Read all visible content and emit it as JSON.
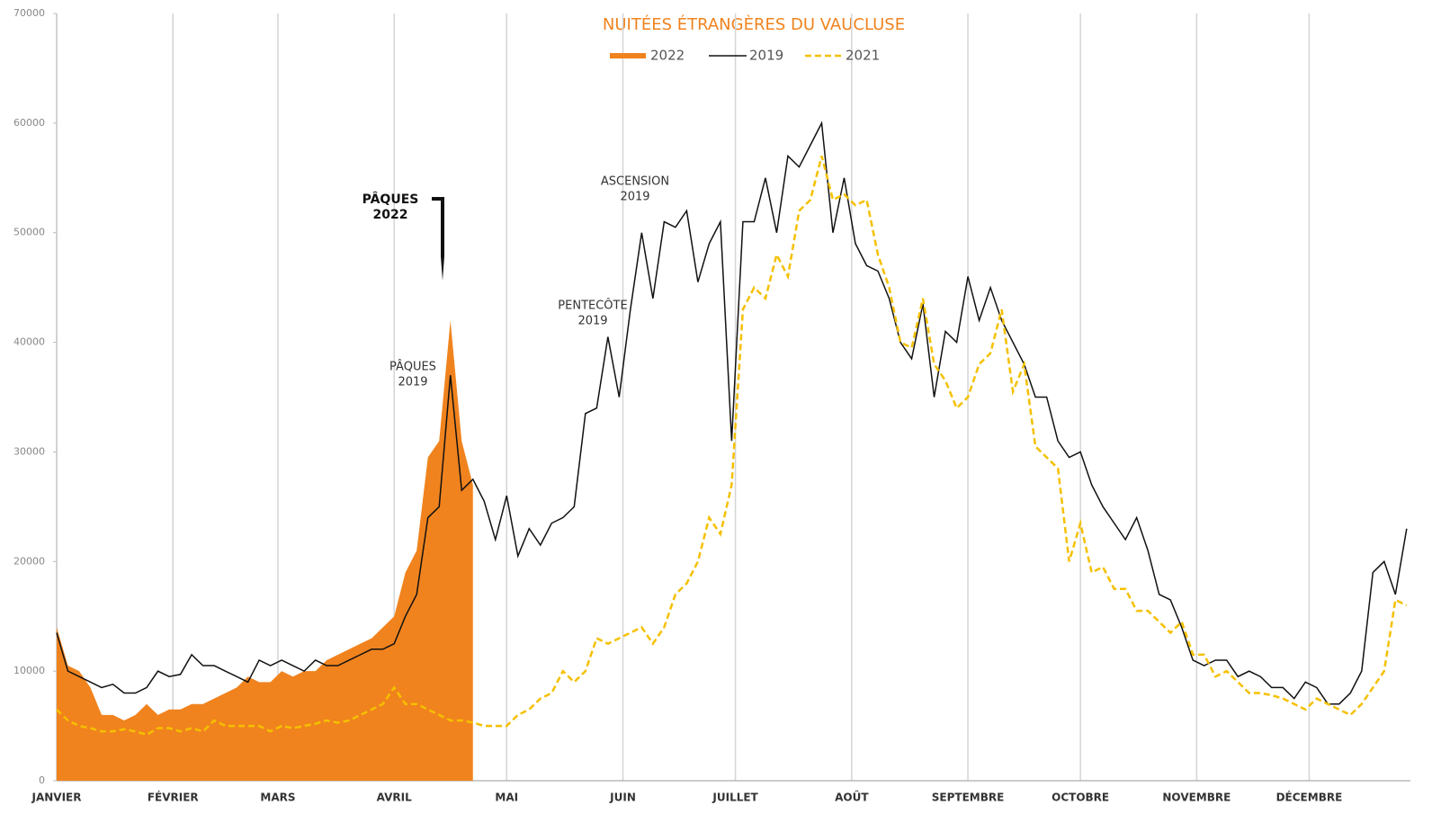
{
  "chart_data": {
    "type": "line",
    "title": "NUITÉES ÉTRANGÈRES  DU VAUCLUSE",
    "xlim": [
      0,
      361
    ],
    "ylim": [
      0,
      70000
    ],
    "yticks": [
      0,
      10000,
      20000,
      30000,
      40000,
      50000,
      60000,
      70000
    ],
    "xticks": [
      {
        "value": 0,
        "label": "JANVIER"
      },
      {
        "value": 31,
        "label": "FÉVRIER"
      },
      {
        "value": 59,
        "label": "MARS"
      },
      {
        "value": 90,
        "label": "AVRIL"
      },
      {
        "value": 120,
        "label": "MAI"
      },
      {
        "value": 151,
        "label": "JUIN"
      },
      {
        "value": 181,
        "label": "JUILLET"
      },
      {
        "value": 212,
        "label": "AOÛT"
      },
      {
        "value": 243,
        "label": "SEPTEMBRE"
      },
      {
        "value": 273,
        "label": "OCTOBRE"
      },
      {
        "value": 304,
        "label": "NOVEMBRE"
      },
      {
        "value": 334,
        "label": "DÉCEMBRE"
      }
    ],
    "grid": true,
    "x": [
      0,
      3,
      6,
      9,
      12,
      15,
      18,
      21,
      24,
      27,
      30,
      33,
      36,
      39,
      42,
      45,
      48,
      51,
      54,
      57,
      60,
      63,
      66,
      69,
      72,
      75,
      78,
      81,
      84,
      87,
      90,
      93,
      96,
      99,
      102,
      105,
      108,
      111,
      114,
      117,
      120,
      123,
      126,
      129,
      132,
      135,
      138,
      141,
      144,
      147,
      150,
      153,
      156,
      159,
      162,
      165,
      168,
      171,
      174,
      177,
      180,
      183,
      186,
      189,
      192,
      195,
      198,
      201,
      204,
      207,
      210,
      213,
      216,
      219,
      222,
      225,
      228,
      231,
      234,
      237,
      240,
      243,
      246,
      249,
      252,
      255,
      258,
      261,
      264,
      267,
      270,
      273,
      276,
      279,
      282,
      285,
      288,
      291,
      294,
      297,
      300,
      303,
      306,
      309,
      312,
      315,
      318,
      321,
      324,
      327,
      330,
      333,
      336,
      339,
      342,
      345,
      348,
      351,
      354,
      357,
      360
    ],
    "series": [
      {
        "name": "2022",
        "color": "#f0831e",
        "fill": true,
        "values": [
          14000,
          10500,
          10000,
          8500,
          6000,
          6000,
          5500,
          6000,
          7000,
          6000,
          6500,
          6500,
          7000,
          7000,
          7500,
          8000,
          8500,
          9500,
          9000,
          9000,
          10000,
          9500,
          10000,
          10000,
          11000,
          11500,
          12000,
          12500,
          13000,
          14000,
          15000,
          19000,
          21000,
          29500,
          31000,
          42000,
          31000,
          27000,
          null,
          null,
          null,
          null,
          null,
          null,
          null,
          null,
          null,
          null,
          null,
          null,
          null,
          null,
          null,
          null,
          null,
          null,
          null,
          null,
          null,
          null,
          null,
          null,
          null,
          null,
          null,
          null,
          null,
          null,
          null,
          null,
          null,
          null,
          null,
          null,
          null,
          null,
          null,
          null,
          null,
          null,
          null,
          null,
          null,
          null,
          null,
          null,
          null,
          null,
          null,
          null,
          null,
          null,
          null,
          null,
          null,
          null,
          null,
          null,
          null,
          null,
          null,
          null,
          null,
          null,
          null,
          null,
          null,
          null,
          null,
          null,
          null,
          null,
          null,
          null,
          null,
          null,
          null,
          null,
          null,
          null,
          null
        ]
      },
      {
        "name": "2019",
        "color": "#111111",
        "values": [
          13500,
          10000,
          9500,
          9000,
          8500,
          8800,
          8000,
          8000,
          8500,
          10000,
          9500,
          9700,
          11500,
          10500,
          10500,
          10000,
          9500,
          9000,
          11000,
          10500,
          11000,
          10500,
          10000,
          11000,
          10500,
          10500,
          11000,
          11500,
          12000,
          12000,
          12500,
          15000,
          17000,
          24000,
          25000,
          37000,
          26500,
          27500,
          25500,
          22000,
          26000,
          20500,
          23000,
          21500,
          23500,
          24000,
          25000,
          33500,
          34000,
          40500,
          35000,
          43000,
          50000,
          44000,
          51000,
          50500,
          52000,
          45500,
          49000,
          51000,
          31000,
          51000,
          51000,
          55000,
          50000,
          57000,
          56000,
          58000,
          60000,
          50000,
          55000,
          49000,
          47000,
          46500,
          44000,
          40000,
          38500,
          43500,
          35000,
          41000,
          40000,
          46000,
          42000,
          45000,
          42000,
          40000,
          38000,
          35000,
          35000,
          31000,
          29500,
          30000,
          27000,
          25000,
          23500,
          22000,
          24000,
          21000,
          17000,
          16500,
          14000,
          11000,
          10500,
          11000,
          11000,
          9500,
          10000,
          9500,
          8500,
          8500,
          7500,
          9000,
          8500,
          7000,
          7000,
          8000,
          10000,
          19000,
          20000,
          17000,
          23000
        ]
      },
      {
        "name": "2021",
        "color": "#f5c000",
        "dashed": true,
        "values": [
          6500,
          5500,
          5000,
          4800,
          4500,
          4500,
          4700,
          4500,
          4200,
          4800,
          4800,
          4500,
          4800,
          4500,
          5500,
          5000,
          5000,
          5000,
          5000,
          4500,
          5000,
          4800,
          5000,
          5200,
          5500,
          5300,
          5500,
          6000,
          6500,
          7000,
          8500,
          7000,
          7000,
          6500,
          6000,
          5500,
          5500,
          5300,
          5000,
          5000,
          5000,
          6000,
          6500,
          7500,
          8000,
          10000,
          9000,
          10000,
          13000,
          12500,
          13000,
          13500,
          14000,
          12500,
          14000,
          17000,
          18000,
          20000,
          24000,
          22500,
          27000,
          43000,
          45000,
          44000,
          48000,
          46000,
          52000,
          53000,
          57000,
          53000,
          53500,
          52500,
          53000,
          48000,
          45000,
          40000,
          39500,
          44000,
          38000,
          36500,
          34000,
          35000,
          38000,
          39000,
          43000,
          35500,
          38000,
          30500,
          29500,
          28500,
          20000,
          23500,
          19000,
          19500,
          17500,
          17500,
          15500,
          15500,
          14500,
          13500,
          14500,
          11500,
          11500,
          9500,
          10000,
          9000,
          8000,
          8000,
          7800,
          7500,
          7000,
          6500,
          7500,
          7000,
          6500,
          6000,
          7000,
          8500,
          10000,
          16500,
          16000
        ]
      }
    ],
    "annotations": [
      {
        "lines": [
          "PÂQUES",
          "2022"
        ]
      },
      {
        "lines": [
          "PÂQUES",
          "2019"
        ]
      },
      {
        "lines": [
          "PENTECÔTE",
          "2019"
        ]
      },
      {
        "lines": [
          "ASCENSION",
          "2019"
        ]
      }
    ]
  }
}
